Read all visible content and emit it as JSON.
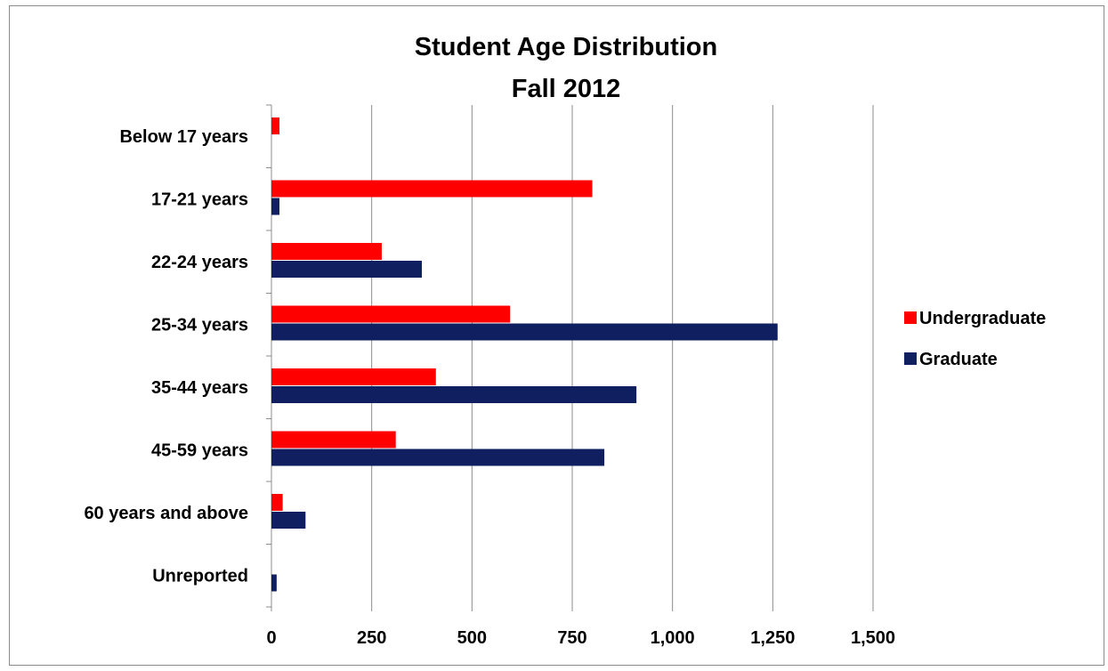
{
  "chart_data": {
    "type": "bar",
    "orientation": "horizontal",
    "title": "Student Age Distribution",
    "subtitle": "Fall 2012",
    "categories": [
      "Below 17 years",
      "17-21 years",
      "22-24 years",
      "25-34 years",
      "35-44 years",
      "45-59 years",
      "60 years and above",
      "Unreported"
    ],
    "series": [
      {
        "name": "Undergraduate",
        "color": "#ff0000",
        "values": [
          20,
          800,
          275,
          595,
          410,
          310,
          28,
          0
        ]
      },
      {
        "name": "Graduate",
        "color": "#0f1f5f",
        "values": [
          0,
          20,
          375,
          1262,
          910,
          830,
          85,
          13
        ]
      }
    ],
    "xlim": [
      0,
      1500
    ],
    "xticks": [
      "0",
      "250",
      "500",
      "750",
      "1,000",
      "1,250",
      "1,500"
    ],
    "xtick_values": [
      0,
      250,
      500,
      750,
      1000,
      1250,
      1500
    ],
    "grid": true,
    "legend_position": "right"
  }
}
